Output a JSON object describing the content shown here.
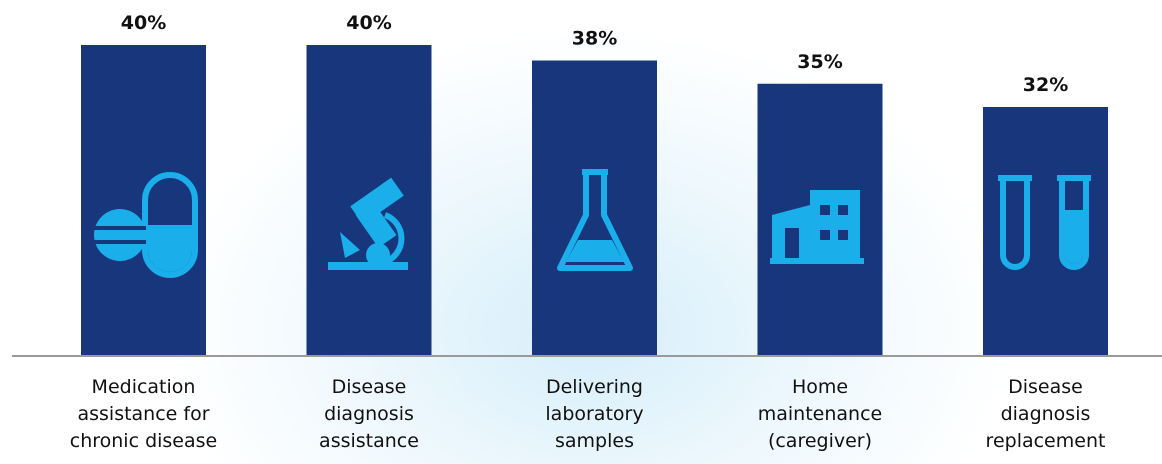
{
  "chart_data": {
    "type": "bar",
    "categories": [
      "Medication\nassistance for\nchronic disease",
      "Disease\ndiagnosis\nassistance",
      "Delivering\nlaboratory\nsamples",
      "Home\nmaintenance\n(caregiver)",
      "Disease\ndiagnosis\nreplacement"
    ],
    "values": [
      40,
      40,
      38,
      35,
      32
    ],
    "value_labels": [
      "40%",
      "40%",
      "38%",
      "35%",
      "32%"
    ],
    "color": "#17367b"
  }
}
